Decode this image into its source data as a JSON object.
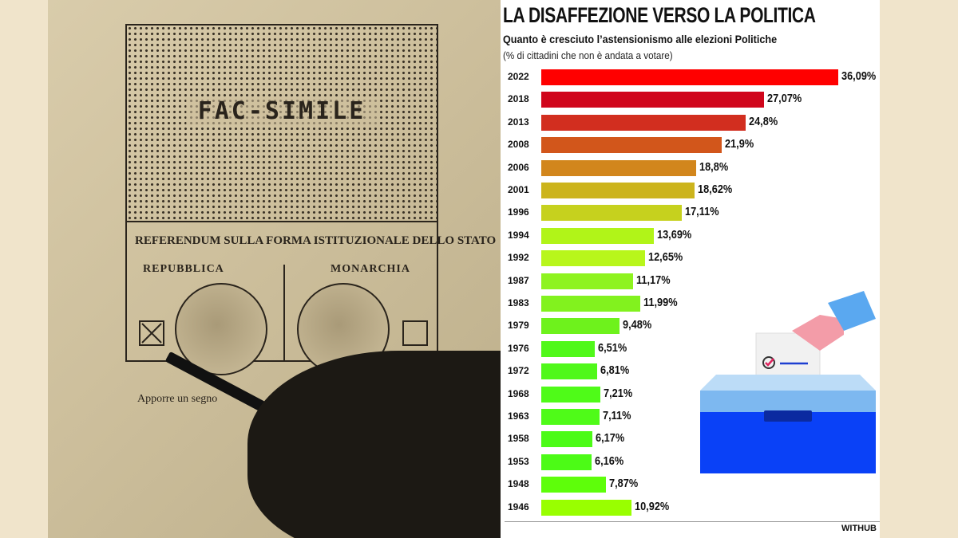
{
  "photo": {
    "fac_simile": "FAC-SIMILE",
    "referendum": "REFERENDUM SULLA FORMA ISTITUZIONALE DELLO STATO",
    "option_left": "REPUBBLICA",
    "option_right": "MONARCHIA",
    "instruction": "Apporre un segno"
  },
  "chart_data": {
    "type": "bar",
    "orientation": "horizontal",
    "title": "LA DISAFFEZIONE VERSO LA POLITICA",
    "subtitle": "Quanto è cresciuto l’astensionismo alle elezioni Politiche",
    "note": "(% di cittadini che non è andata a votare)",
    "categories": [
      "2022",
      "2018",
      "2013",
      "2008",
      "2006",
      "2001",
      "1996",
      "1994",
      "1992",
      "1987",
      "1983",
      "1979",
      "1976",
      "1972",
      "1968",
      "1963",
      "1958",
      "1953",
      "1948",
      "1946"
    ],
    "values": [
      36.09,
      27.07,
      24.8,
      21.9,
      18.8,
      18.62,
      17.11,
      13.69,
      12.65,
      11.17,
      11.99,
      9.48,
      6.51,
      6.81,
      7.21,
      7.11,
      6.17,
      6.16,
      7.87,
      10.92
    ],
    "labels": [
      "36,09%",
      "27,07%",
      "24,8%",
      "21,9%",
      "18,8%",
      "18,62%",
      "17,11%",
      "13,69%",
      "12,65%",
      "11,17%",
      "11,99%",
      "9,48%",
      "6,51%",
      "6,81%",
      "7,21%",
      "7,11%",
      "6,17%",
      "6,16%",
      "7,87%",
      "10,92%"
    ],
    "colors": [
      "#ff0000",
      "#d0061c",
      "#d22e1f",
      "#d2561b",
      "#d2861c",
      "#ccb41c",
      "#c6d11e",
      "#b1f418",
      "#b8f61b",
      "#8ef31f",
      "#82f21e",
      "#6ef21c",
      "#50f81a",
      "#50f81a",
      "#4ffb18",
      "#4ffb18",
      "#4cfb16",
      "#4cfb16",
      "#5efe0a",
      "#99ff00"
    ],
    "xlim": [
      0,
      36.09
    ],
    "grid": false,
    "source": "WITHUB"
  }
}
